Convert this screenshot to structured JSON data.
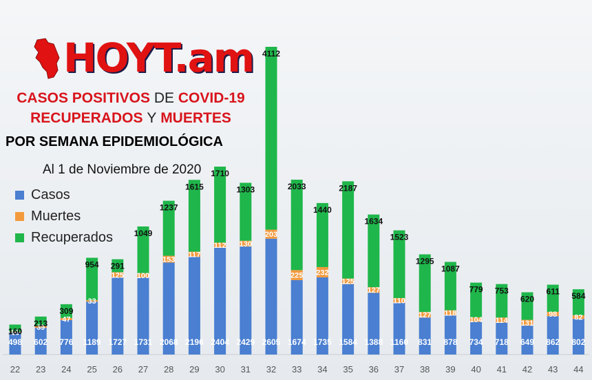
{
  "logo": {
    "text": "HOYT.am"
  },
  "title": {
    "line1": {
      "a": "CASOS POSITIVOS",
      "b": "DE",
      "c": "COVID-19"
    },
    "line2": {
      "a": "RECUPERADOS",
      "b": "Y",
      "c": "MUERTES"
    },
    "line3": "POR SEMANA EPIDEMIOLÓGICA",
    "date": "Al 1 de Noviembre de 2020"
  },
  "colors": {
    "casos": "#4a7fd1",
    "muertes": "#f39a3d",
    "recuperados": "#1fb64b",
    "brand": "#e01212"
  },
  "chart_data": {
    "type": "bar",
    "stacked": true,
    "categories": [
      "22",
      "23",
      "24",
      "25",
      "26",
      "27",
      "28",
      "29",
      "30",
      "31",
      "32",
      "33",
      "34",
      "35",
      "36",
      "37",
      "38",
      "39",
      "40",
      "41",
      "42",
      "43",
      "44"
    ],
    "series": [
      {
        "name": "Casos",
        "values": [
          498,
          602,
          776,
          1189,
          1727,
          1731,
          2068,
          2196,
          2404,
          2429,
          2605,
          1674,
          1735,
          1584,
          1388,
          1160,
          831,
          878,
          734,
          718,
          649,
          862,
          802
        ]
      },
      {
        "name": "Muertes",
        "values": [
          16,
          39,
          47,
          33,
          125,
          100,
          153,
          117,
          112,
          130,
          203,
          225,
          232,
          125,
          127,
          110,
          127,
          118,
          104,
          114,
          131,
          98,
          82
        ]
      },
      {
        "name": "Recuperados",
        "values": [
          160,
          213,
          309,
          954,
          291,
          1049,
          1237,
          1615,
          1710,
          1303,
          4112,
          2033,
          1440,
          2187,
          1634,
          1523,
          1295,
          1087,
          779,
          753,
          620,
          611,
          584
        ]
      }
    ],
    "legend": "left",
    "grid": false
  }
}
